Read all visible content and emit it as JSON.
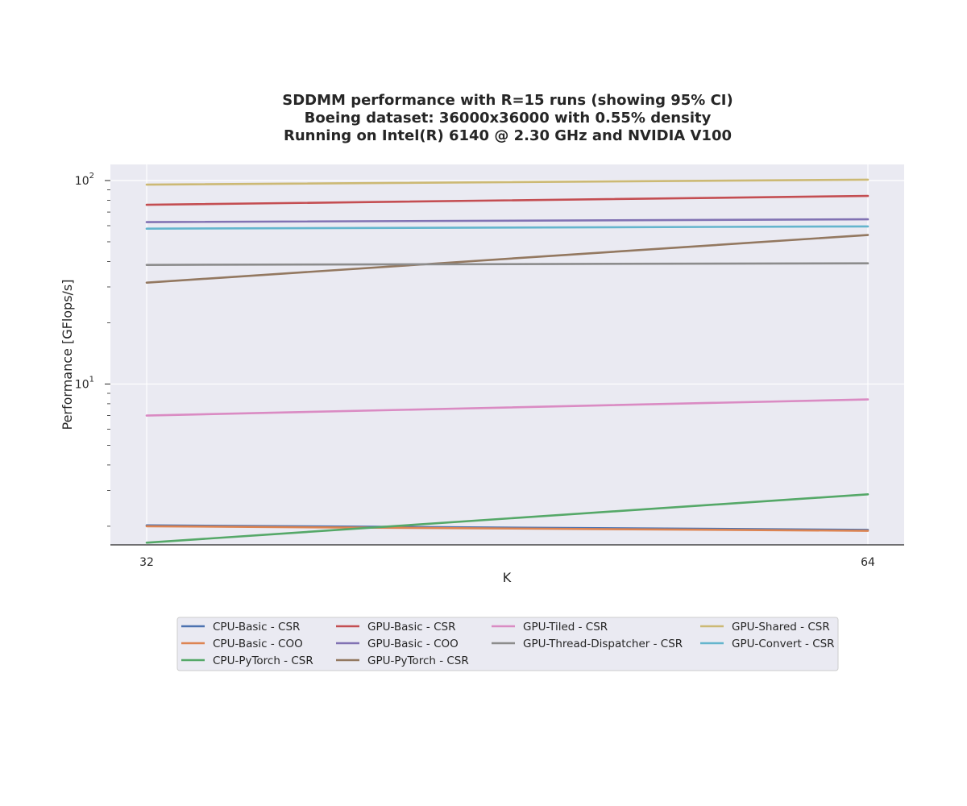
{
  "chart_data": {
    "type": "line",
    "title": [
      "SDDMM performance with R=15 runs (showing 95% CI)",
      "Boeing dataset: 36000x36000 with 0.55% density",
      "Running on Intel(R) 6140 @ 2.30 GHz and NVIDIA V100"
    ],
    "xlabel": "K",
    "ylabel": "Performance [GFlops/s]",
    "x": [
      32,
      64
    ],
    "x_ticks": [
      "32",
      "64"
    ],
    "y_scale": "log",
    "ylim": [
      1.62,
      120
    ],
    "y_ticks": [
      {
        "value": 10,
        "base": "10",
        "exp": "1"
      },
      {
        "value": 100,
        "base": "10",
        "exp": "2"
      }
    ],
    "grid": true,
    "legend_position": "below plot, 4 columns",
    "series": [
      {
        "name": "CPU-Basic - CSR",
        "color": "#4c72b0",
        "values": [
          2.02,
          1.92
        ]
      },
      {
        "name": "CPU-Basic - COO",
        "color": "#dd8452",
        "values": [
          2.0,
          1.9
        ]
      },
      {
        "name": "CPU-PyTorch - CSR",
        "color": "#55a868",
        "values": [
          1.66,
          2.87
        ]
      },
      {
        "name": "GPU-Basic - CSR",
        "color": "#c44e52",
        "values": [
          76,
          84
        ]
      },
      {
        "name": "GPU-Basic - COO",
        "color": "#8172b3",
        "values": [
          62.5,
          64.5
        ]
      },
      {
        "name": "GPU-PyTorch - CSR",
        "color": "#937860",
        "values": [
          31.5,
          54
        ]
      },
      {
        "name": "GPU-Tiled - CSR",
        "color": "#da8bc3",
        "values": [
          7.0,
          8.4
        ]
      },
      {
        "name": "GPU-Thread-Dispatcher - CSR",
        "color": "#8c8c8c",
        "values": [
          38.5,
          39.2
        ]
      },
      {
        "name": "GPU-Shared - CSR",
        "color": "#ccb974",
        "values": [
          95.5,
          101
        ]
      },
      {
        "name": "GPU-Convert - CSR",
        "color": "#64b5cd",
        "values": [
          58,
          59.5
        ]
      }
    ]
  }
}
